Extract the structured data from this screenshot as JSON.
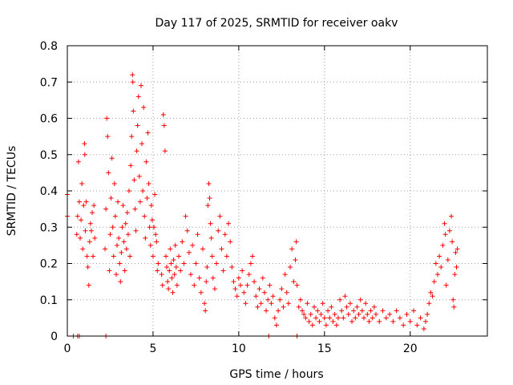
{
  "chart_data": {
    "type": "scatter",
    "title": "Day 117 of 2025, SRMTID for receiver oakv",
    "xlabel": "GPS time / hours",
    "ylabel": "SRMTID / TECUs",
    "xlim": [
      0,
      24.5
    ],
    "ylim": [
      0,
      0.8
    ],
    "xticks": [
      0,
      5,
      10,
      15,
      20
    ],
    "xtick_labels": [
      "0",
      "5",
      "10",
      "15",
      "20"
    ],
    "yticks": [
      0,
      0.1,
      0.2,
      0.3,
      0.4,
      0.5,
      0.6,
      0.7,
      0.8
    ],
    "ytick_labels": [
      "0",
      "0.1",
      "0.2",
      "0.3",
      "0.4",
      "0.5",
      "0.6",
      "0.7",
      "0.8"
    ],
    "grid": true,
    "marker": "+",
    "series_color": "#ff0000",
    "series": [
      {
        "name": "SRMTID",
        "points": [
          [
            0.0,
            0.39
          ],
          [
            0.0,
            0.33
          ],
          [
            0.35,
            0.0
          ],
          [
            0.6,
            0.0
          ],
          [
            0.7,
            0.0
          ],
          [
            2.25,
            0.0
          ],
          [
            11.75,
            0.0
          ],
          [
            13.4,
            0.0
          ],
          [
            0.55,
            0.28
          ],
          [
            0.6,
            0.33
          ],
          [
            0.65,
            0.48
          ],
          [
            0.7,
            0.37
          ],
          [
            0.75,
            0.27
          ],
          [
            0.8,
            0.32
          ],
          [
            0.85,
            0.42
          ],
          [
            0.9,
            0.24
          ],
          [
            0.95,
            0.36
          ],
          [
            1.0,
            0.53
          ],
          [
            1.02,
            0.5
          ],
          [
            1.05,
            0.29
          ],
          [
            1.1,
            0.37
          ],
          [
            1.15,
            0.22
          ],
          [
            1.2,
            0.19
          ],
          [
            1.25,
            0.14
          ],
          [
            1.3,
            0.26
          ],
          [
            1.35,
            0.31
          ],
          [
            1.4,
            0.29
          ],
          [
            1.45,
            0.34
          ],
          [
            1.5,
            0.22
          ],
          [
            1.55,
            0.36
          ],
          [
            1.6,
            0.27
          ],
          [
            2.2,
            0.24
          ],
          [
            2.25,
            0.35
          ],
          [
            2.3,
            0.6
          ],
          [
            2.35,
            0.55
          ],
          [
            2.4,
            0.45
          ],
          [
            2.45,
            0.18
          ],
          [
            2.5,
            0.28
          ],
          [
            2.55,
            0.38
          ],
          [
            2.6,
            0.49
          ],
          [
            2.65,
            0.3
          ],
          [
            2.7,
            0.22
          ],
          [
            2.75,
            0.42
          ],
          [
            2.8,
            0.33
          ],
          [
            2.85,
            0.17
          ],
          [
            2.9,
            0.25
          ],
          [
            2.95,
            0.37
          ],
          [
            3.0,
            0.27
          ],
          [
            3.05,
            0.2
          ],
          [
            3.1,
            0.15
          ],
          [
            3.15,
            0.23
          ],
          [
            3.2,
            0.3
          ],
          [
            3.25,
            0.36
          ],
          [
            3.3,
            0.26
          ],
          [
            3.35,
            0.18
          ],
          [
            3.4,
            0.31
          ],
          [
            3.45,
            0.24
          ],
          [
            3.5,
            0.34
          ],
          [
            3.55,
            0.28
          ],
          [
            3.6,
            0.4
          ],
          [
            3.65,
            0.22
          ],
          [
            3.7,
            0.47
          ],
          [
            3.75,
            0.55
          ],
          [
            3.8,
            0.72
          ],
          [
            3.82,
            0.7
          ],
          [
            3.85,
            0.62
          ],
          [
            3.9,
            0.43
          ],
          [
            3.95,
            0.35
          ],
          [
            4.0,
            0.29
          ],
          [
            4.05,
            0.51
          ],
          [
            4.1,
            0.58
          ],
          [
            4.15,
            0.66
          ],
          [
            4.2,
            0.44
          ],
          [
            4.25,
            0.37
          ],
          [
            4.3,
            0.69
          ],
          [
            4.35,
            0.53
          ],
          [
            4.4,
            0.4
          ],
          [
            4.45,
            0.63
          ],
          [
            4.5,
            0.33
          ],
          [
            4.55,
            0.27
          ],
          [
            4.6,
            0.48
          ],
          [
            4.65,
            0.38
          ],
          [
            4.7,
            0.56
          ],
          [
            4.75,
            0.42
          ],
          [
            4.8,
            0.3
          ],
          [
            4.85,
            0.25
          ],
          [
            4.9,
            0.36
          ],
          [
            4.95,
            0.32
          ],
          [
            5.0,
            0.22
          ],
          [
            5.05,
            0.3
          ],
          [
            5.1,
            0.39
          ],
          [
            5.15,
            0.28
          ],
          [
            5.2,
            0.26
          ],
          [
            5.25,
            0.18
          ],
          [
            5.3,
            0.2
          ],
          [
            5.5,
            0.17
          ],
          [
            5.55,
            0.14
          ],
          [
            5.6,
            0.61
          ],
          [
            5.65,
            0.58
          ],
          [
            5.7,
            0.51
          ],
          [
            5.75,
            0.22
          ],
          [
            5.8,
            0.19
          ],
          [
            5.85,
            0.15
          ],
          [
            5.9,
            0.13
          ],
          [
            5.95,
            0.18
          ],
          [
            6.0,
            0.24
          ],
          [
            6.05,
            0.2
          ],
          [
            6.1,
            0.16
          ],
          [
            6.15,
            0.12
          ],
          [
            6.2,
            0.21
          ],
          [
            6.25,
            0.17
          ],
          [
            6.3,
            0.25
          ],
          [
            6.35,
            0.19
          ],
          [
            6.4,
            0.14
          ],
          [
            6.5,
            0.22
          ],
          [
            6.6,
            0.18
          ],
          [
            6.7,
            0.26
          ],
          [
            6.8,
            0.2
          ],
          [
            6.9,
            0.33
          ],
          [
            7.0,
            0.29
          ],
          [
            7.1,
            0.23
          ],
          [
            7.2,
            0.17
          ],
          [
            7.3,
            0.25
          ],
          [
            7.4,
            0.14
          ],
          [
            7.5,
            0.2
          ],
          [
            7.6,
            0.28
          ],
          [
            7.7,
            0.16
          ],
          [
            7.8,
            0.12
          ],
          [
            7.9,
            0.24
          ],
          [
            8.0,
            0.09
          ],
          [
            8.05,
            0.07
          ],
          [
            8.1,
            0.15
          ],
          [
            8.15,
            0.19
          ],
          [
            8.2,
            0.36
          ],
          [
            8.25,
            0.42
          ],
          [
            8.3,
            0.38
          ],
          [
            8.35,
            0.31
          ],
          [
            8.4,
            0.27
          ],
          [
            8.45,
            0.22
          ],
          [
            8.5,
            0.16
          ],
          [
            8.6,
            0.13
          ],
          [
            8.7,
            0.2
          ],
          [
            8.8,
            0.29
          ],
          [
            8.9,
            0.33
          ],
          [
            9.0,
            0.24
          ],
          [
            9.1,
            0.18
          ],
          [
            9.2,
            0.28
          ],
          [
            9.3,
            0.22
          ],
          [
            9.4,
            0.31
          ],
          [
            9.5,
            0.26
          ],
          [
            9.6,
            0.19
          ],
          [
            9.7,
            0.15
          ],
          [
            9.8,
            0.13
          ],
          [
            9.9,
            0.11
          ],
          [
            10.0,
            0.16
          ],
          [
            10.1,
            0.14
          ],
          [
            10.2,
            0.18
          ],
          [
            10.3,
            0.12
          ],
          [
            10.4,
            0.09
          ],
          [
            10.5,
            0.14
          ],
          [
            10.6,
            0.17
          ],
          [
            10.7,
            0.2
          ],
          [
            10.8,
            0.22
          ],
          [
            10.9,
            0.15
          ],
          [
            11.0,
            0.11
          ],
          [
            11.1,
            0.08
          ],
          [
            11.2,
            0.13
          ],
          [
            11.3,
            0.09
          ],
          [
            11.4,
            0.16
          ],
          [
            11.5,
            0.12
          ],
          [
            11.6,
            0.07
          ],
          [
            11.7,
            0.1
          ],
          [
            11.8,
            0.14
          ],
          [
            11.9,
            0.09
          ],
          [
            12.0,
            0.11
          ],
          [
            12.1,
            0.05
          ],
          [
            12.2,
            0.03
          ],
          [
            12.3,
            0.07
          ],
          [
            12.4,
            0.1
          ],
          [
            12.5,
            0.13
          ],
          [
            12.6,
            0.08
          ],
          [
            12.7,
            0.17
          ],
          [
            12.8,
            0.12
          ],
          [
            12.9,
            0.09
          ],
          [
            13.0,
            0.19
          ],
          [
            13.1,
            0.24
          ],
          [
            13.2,
            0.15
          ],
          [
            13.3,
            0.21
          ],
          [
            13.35,
            0.26
          ],
          [
            13.4,
            0.14
          ],
          [
            13.5,
            0.08
          ],
          [
            13.6,
            0.1
          ],
          [
            13.7,
            0.07
          ],
          [
            13.8,
            0.06
          ],
          [
            13.9,
            0.05
          ],
          [
            14.0,
            0.09
          ],
          [
            14.1,
            0.04
          ],
          [
            14.2,
            0.06
          ],
          [
            14.3,
            0.03
          ],
          [
            14.4,
            0.08
          ],
          [
            14.5,
            0.05
          ],
          [
            14.6,
            0.07
          ],
          [
            14.7,
            0.04
          ],
          [
            14.8,
            0.06
          ],
          [
            14.9,
            0.09
          ],
          [
            15.0,
            0.05
          ],
          [
            15.1,
            0.03
          ],
          [
            15.2,
            0.07
          ],
          [
            15.3,
            0.05
          ],
          [
            15.4,
            0.08
          ],
          [
            15.5,
            0.04
          ],
          [
            15.6,
            0.06
          ],
          [
            15.7,
            0.03
          ],
          [
            15.8,
            0.05
          ],
          [
            15.9,
            0.1
          ],
          [
            16.0,
            0.07
          ],
          [
            16.1,
            0.05
          ],
          [
            16.2,
            0.11
          ],
          [
            16.3,
            0.08
          ],
          [
            16.4,
            0.06
          ],
          [
            16.5,
            0.09
          ],
          [
            16.6,
            0.04
          ],
          [
            16.7,
            0.07
          ],
          [
            16.8,
            0.05
          ],
          [
            16.9,
            0.08
          ],
          [
            17.0,
            0.06
          ],
          [
            17.1,
            0.1
          ],
          [
            17.2,
            0.07
          ],
          [
            17.3,
            0.05
          ],
          [
            17.4,
            0.09
          ],
          [
            17.5,
            0.06
          ],
          [
            17.6,
            0.04
          ],
          [
            17.7,
            0.07
          ],
          [
            17.8,
            0.05
          ],
          [
            17.9,
            0.08
          ],
          [
            18.0,
            0.06
          ],
          [
            18.2,
            0.04
          ],
          [
            18.4,
            0.07
          ],
          [
            18.6,
            0.05
          ],
          [
            18.8,
            0.06
          ],
          [
            19.0,
            0.04
          ],
          [
            19.2,
            0.07
          ],
          [
            19.4,
            0.05
          ],
          [
            19.6,
            0.03
          ],
          [
            19.8,
            0.06
          ],
          [
            20.0,
            0.04
          ],
          [
            20.2,
            0.07
          ],
          [
            20.4,
            0.03
          ],
          [
            20.6,
            0.05
          ],
          [
            20.8,
            0.02
          ],
          [
            20.9,
            0.04
          ],
          [
            21.0,
            0.06
          ],
          [
            21.1,
            0.09
          ],
          [
            21.2,
            0.12
          ],
          [
            21.3,
            0.11
          ],
          [
            21.4,
            0.15
          ],
          [
            21.5,
            0.2
          ],
          [
            21.6,
            0.17
          ],
          [
            21.7,
            0.22
          ],
          [
            21.8,
            0.19
          ],
          [
            21.9,
            0.25
          ],
          [
            22.0,
            0.31
          ],
          [
            22.05,
            0.28
          ],
          [
            22.1,
            0.14
          ],
          [
            22.2,
            0.21
          ],
          [
            22.3,
            0.29
          ],
          [
            22.4,
            0.33
          ],
          [
            22.45,
            0.26
          ],
          [
            22.5,
            0.1
          ],
          [
            22.55,
            0.08
          ],
          [
            22.6,
            0.17
          ],
          [
            22.65,
            0.23
          ],
          [
            22.7,
            0.19
          ],
          [
            22.75,
            0.24
          ]
        ]
      }
    ]
  }
}
